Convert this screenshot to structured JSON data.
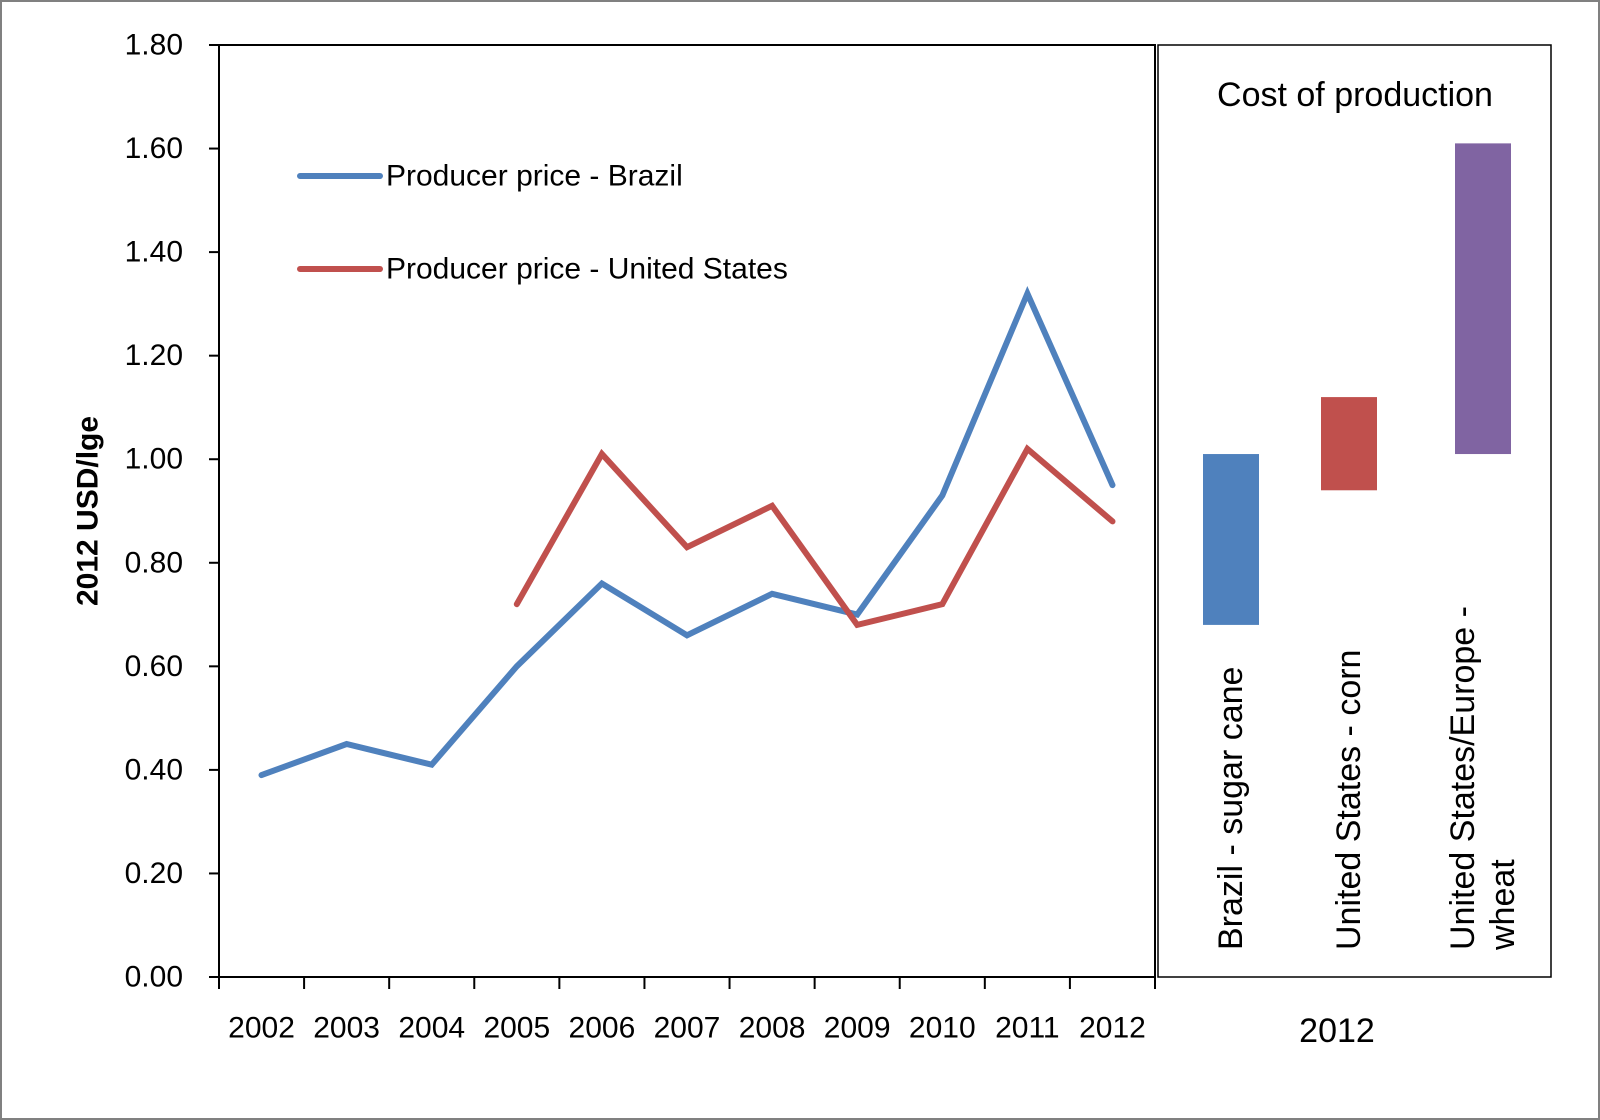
{
  "chart_data": [
    {
      "type": "line",
      "ylabel": "2012 USD/lge",
      "ylim": [
        0,
        1.8
      ],
      "y_ticks": [
        "0.00",
        "0.20",
        "0.40",
        "0.60",
        "0.80",
        "1.00",
        "1.20",
        "1.40",
        "1.60",
        "1.80"
      ],
      "categories": [
        "2002",
        "2003",
        "2004",
        "2005",
        "2006",
        "2007",
        "2008",
        "2009",
        "2010",
        "2011",
        "2012"
      ],
      "legend_position": "top-left",
      "grid": false,
      "series": [
        {
          "name": "Producer price - Brazil",
          "color": "#4f81bd",
          "values": [
            0.39,
            0.45,
            0.41,
            0.6,
            0.76,
            0.66,
            0.74,
            0.7,
            0.93,
            1.32,
            0.95
          ]
        },
        {
          "name": "Producer price - United States",
          "color": "#c0504d",
          "values": [
            null,
            null,
            null,
            0.72,
            1.01,
            0.83,
            0.91,
            0.68,
            0.72,
            1.02,
            0.88
          ]
        }
      ]
    },
    {
      "type": "bar",
      "title": "Cost of production",
      "xlabel": "2012",
      "ylim": [
        0,
        1.8
      ],
      "bars": [
        {
          "label": "Brazil - sugar cane",
          "low": 0.68,
          "high": 1.01,
          "color": "#4f81bd"
        },
        {
          "label": "United States - corn",
          "low": 0.94,
          "high": 1.12,
          "color": "#c0504d"
        },
        {
          "label": "United States/Europe - wheat",
          "label_lines": [
            "United States/Europe -",
            "wheat"
          ],
          "low": 1.01,
          "high": 1.61,
          "color": "#8064a2"
        }
      ]
    }
  ]
}
